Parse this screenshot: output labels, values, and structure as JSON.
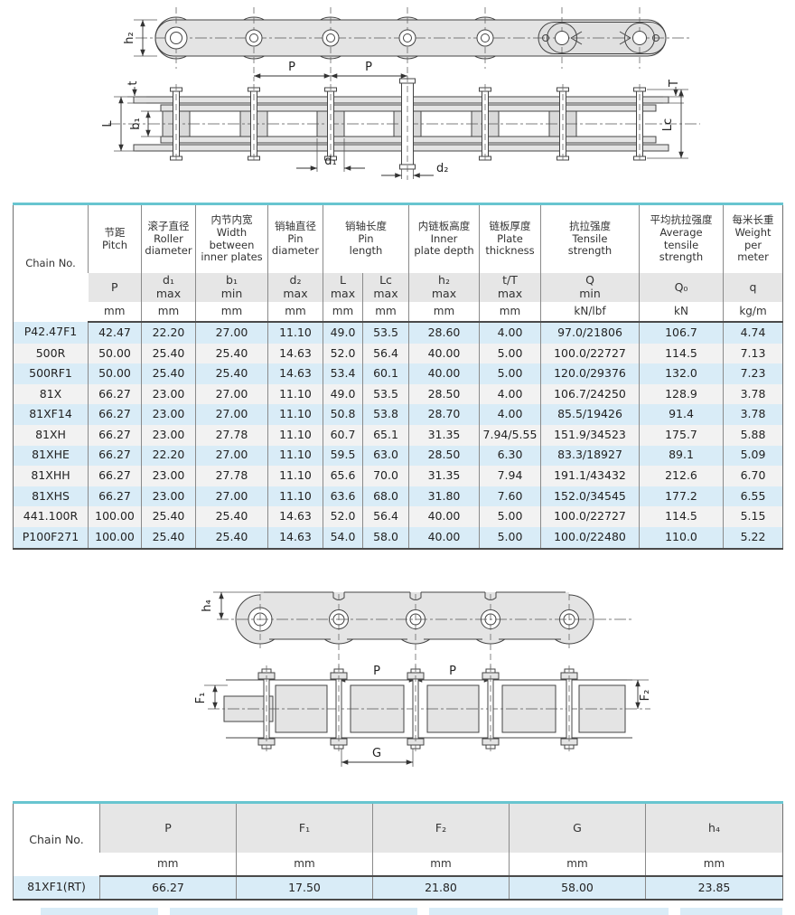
{
  "colors": {
    "accent_teal": "#68c5d0",
    "stripe_blue": "#d9ecf7",
    "stripe_gray": "#f2f2f2",
    "header_gray": "#e6e6e6",
    "line_dark": "#4a4a4a"
  },
  "diagram1": {
    "labels": {
      "h2": "h₂",
      "p_left": "P",
      "p_right": "P",
      "t": "t",
      "L": "L",
      "b1": "b₁",
      "d1": "d₁",
      "d2": "d₂",
      "T": "T",
      "Lc": "Lc"
    }
  },
  "diagram2": {
    "labels": {
      "h4": "h₄",
      "p_left": "P",
      "p_right": "P",
      "F1": "F₁",
      "F2": "F₂",
      "G": "G"
    }
  },
  "main_table": {
    "chain_no_label": "Chain No.",
    "groups": [
      {
        "title": "节距\nPitch",
        "span": 1
      },
      {
        "title": "滚子直径\nRoller\ndiameter",
        "span": 1
      },
      {
        "title": "内节内宽\nWidth\nbetween\ninner plates",
        "span": 1
      },
      {
        "title": "销轴直径\nPin\ndiameter",
        "span": 1
      },
      {
        "title": "销轴长度\nPin\nlength",
        "span": 2
      },
      {
        "title": "内链板高度\nInner\nplate depth",
        "span": 1
      },
      {
        "title": "链板厚度\nPlate\nthickness",
        "span": 1
      },
      {
        "title": "抗拉强度\nTensile\nstrength",
        "span": 1
      },
      {
        "title": "平均抗拉强度\nAverage\ntensile\nstrength",
        "span": 1
      },
      {
        "title": "每米长重\nWeight\nper\nmeter",
        "span": 1
      }
    ],
    "symbols": [
      "P",
      "d₁\nmax",
      "b₁\nmin",
      "d₂\nmax",
      "L\nmax",
      "Lc\nmax",
      "h₂\nmax",
      "t/T\nmax",
      "Q\nmin",
      "Q₀",
      "q"
    ],
    "units": [
      "mm",
      "mm",
      "mm",
      "mm",
      "mm",
      "mm",
      "mm",
      "mm",
      "kN/lbf",
      "kN",
      "kg/m"
    ],
    "rows": [
      {
        "chain_no": "P42.47F1",
        "values": [
          "42.47",
          "22.20",
          "27.00",
          "11.10",
          "49.0",
          "53.5",
          "28.60",
          "4.00",
          "97.0/21806",
          "106.7",
          "4.74"
        ]
      },
      {
        "chain_no": "500R",
        "values": [
          "50.00",
          "25.40",
          "25.40",
          "14.63",
          "52.0",
          "56.4",
          "40.00",
          "5.00",
          "100.0/22727",
          "114.5",
          "7.13"
        ]
      },
      {
        "chain_no": "500RF1",
        "values": [
          "50.00",
          "25.40",
          "25.40",
          "14.63",
          "53.4",
          "60.1",
          "40.00",
          "5.00",
          "120.0/29376",
          "132.0",
          "7.23"
        ]
      },
      {
        "chain_no": "81X",
        "values": [
          "66.27",
          "23.00",
          "27.00",
          "11.10",
          "49.0",
          "53.5",
          "28.50",
          "4.00",
          "106.7/24250",
          "128.9",
          "3.78"
        ]
      },
      {
        "chain_no": "81XF14",
        "values": [
          "66.27",
          "23.00",
          "27.00",
          "11.10",
          "50.8",
          "53.8",
          "28.70",
          "4.00",
          "85.5/19426",
          "91.4",
          "3.78"
        ]
      },
      {
        "chain_no": "81XH",
        "values": [
          "66.27",
          "23.00",
          "27.78",
          "11.10",
          "60.7",
          "65.1",
          "31.35",
          "7.94/5.55",
          "151.9/34523",
          "175.7",
          "5.88"
        ]
      },
      {
        "chain_no": "81XHE",
        "values": [
          "66.27",
          "22.20",
          "27.00",
          "11.10",
          "59.5",
          "63.0",
          "28.50",
          "6.30",
          "83.3/18927",
          "89.1",
          "5.09"
        ]
      },
      {
        "chain_no": "81XHH",
        "values": [
          "66.27",
          "23.00",
          "27.78",
          "11.10",
          "65.6",
          "70.0",
          "31.35",
          "7.94",
          "191.1/43432",
          "212.6",
          "6.70"
        ]
      },
      {
        "chain_no": "81XHS",
        "values": [
          "66.27",
          "23.00",
          "27.00",
          "11.10",
          "63.6",
          "68.0",
          "31.80",
          "7.60",
          "152.0/34545",
          "177.2",
          "6.55"
        ]
      },
      {
        "chain_no": "441.100R",
        "values": [
          "100.00",
          "25.40",
          "25.40",
          "14.63",
          "52.0",
          "56.4",
          "40.00",
          "5.00",
          "100.0/22727",
          "114.5",
          "5.15"
        ]
      },
      {
        "chain_no": "P100F271",
        "values": [
          "100.00",
          "25.40",
          "25.40",
          "14.63",
          "54.0",
          "58.0",
          "40.00",
          "5.00",
          "100.0/22480",
          "110.0",
          "5.22"
        ]
      }
    ]
  },
  "bottom_table": {
    "chain_no_label": "Chain No.",
    "symbols": [
      "P",
      "F₁",
      "F₂",
      "G",
      "h₄"
    ],
    "units": [
      "mm",
      "mm",
      "mm",
      "mm",
      "mm"
    ],
    "rows": [
      {
        "chain_no": "81XF1(RT)",
        "values": [
          "66.27",
          "17.50",
          "21.80",
          "58.00",
          "23.85"
        ]
      }
    ]
  }
}
